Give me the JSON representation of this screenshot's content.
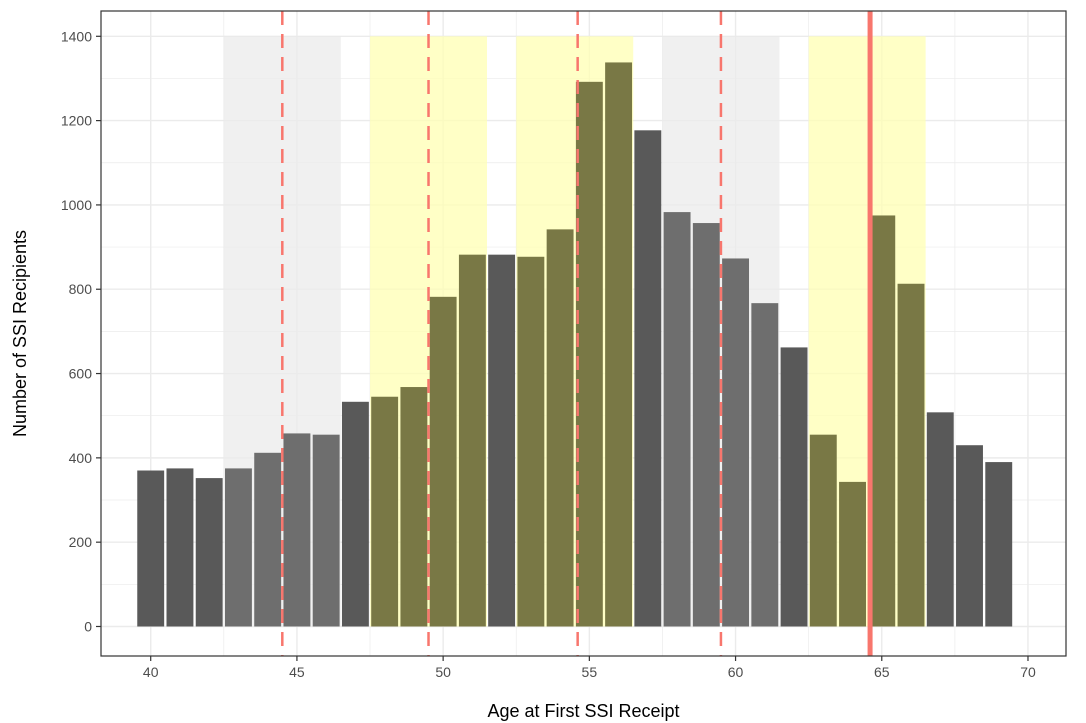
{
  "chart_data": {
    "type": "bar",
    "xlabel": "Age at First SSI Receipt",
    "ylabel": "Number of SSI Recipients",
    "x": [
      40,
      41,
      42,
      43,
      44,
      45,
      46,
      47,
      48,
      49,
      50,
      51,
      52,
      53,
      54,
      55,
      56,
      57,
      58,
      59,
      60,
      61,
      62,
      63,
      64,
      65,
      66,
      67,
      68,
      69
    ],
    "values": [
      370,
      375,
      352,
      375,
      412,
      458,
      455,
      533,
      545,
      568,
      782,
      882,
      882,
      877,
      942,
      1292,
      1338,
      1177,
      983,
      957,
      873,
      767,
      662,
      455,
      343,
      975,
      813,
      508,
      430,
      390
    ],
    "xlim": [
      38.3,
      71.3
    ],
    "ylim": [
      -70,
      1460
    ],
    "xticks": [
      40,
      45,
      50,
      55,
      60,
      65,
      70
    ],
    "yticks": [
      0,
      200,
      400,
      600,
      800,
      1000,
      1200,
      1400
    ],
    "grid": true,
    "shaded_bands": [
      {
        "from": 42.5,
        "to": 46.5,
        "color": "#ebebeb"
      },
      {
        "from": 47.5,
        "to": 51.5,
        "color": "#ffffb3"
      },
      {
        "from": 52.5,
        "to": 56.5,
        "color": "#ffffb3"
      },
      {
        "from": 57.5,
        "to": 61.5,
        "color": "#ebebeb"
      },
      {
        "from": 62.5,
        "to": 66.5,
        "color": "#ffffb3"
      }
    ],
    "band_top": 1400,
    "dashed_lines": [
      44.5,
      49.5,
      54.6,
      59.5
    ],
    "solid_lines": [
      64.6
    ],
    "colors": {
      "bar_dark": "#595959",
      "bar_gray": "#6e6e6e",
      "bar_olive": "#797845",
      "reference_line": "#f8766d",
      "grid": "#ebebeb",
      "panel_border": "#333333"
    }
  }
}
